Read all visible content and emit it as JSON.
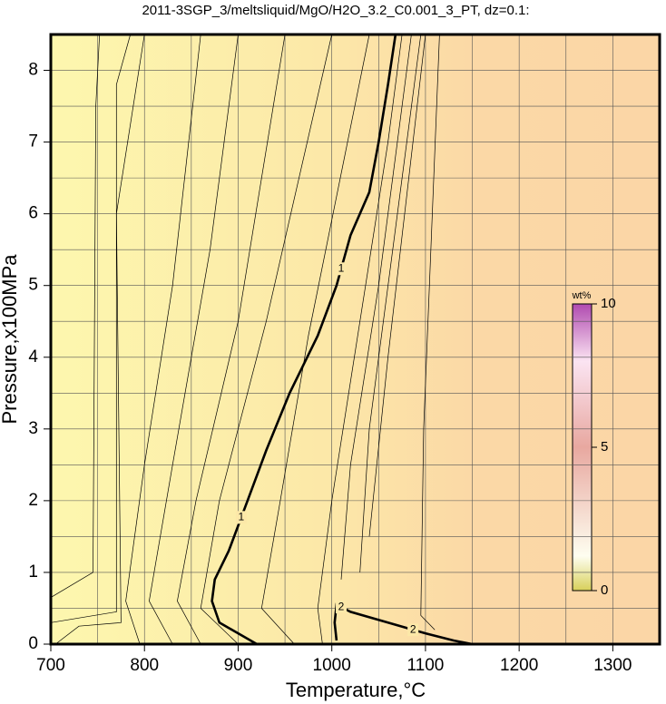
{
  "chart_data": {
    "type": "contour",
    "title": "2011-3SGP_3/meltsliquid/MgO/H2O_3.2_C0.001_3_PT, dz=0.1:",
    "xlabel": "Temperature,°C",
    "ylabel": "Pressure,x100MPa",
    "xlim": [
      700,
      1350
    ],
    "ylim": [
      0,
      8.5
    ],
    "xticks": [
      700,
      800,
      900,
      1000,
      1100,
      1200,
      1300
    ],
    "yticks": [
      0,
      1,
      2,
      3,
      4,
      5,
      6,
      7,
      8
    ],
    "xgrid": [
      750,
      800,
      850,
      900,
      950,
      1000,
      1050,
      1100,
      1150,
      1200,
      1250,
      1300
    ],
    "ygrid": [
      0.5,
      1,
      1.5,
      2,
      2.5,
      3,
      3.5,
      4,
      4.5,
      5,
      5.5,
      6,
      6.5,
      7,
      7.5,
      8
    ],
    "grid": true,
    "colorbar": {
      "label": "wt%",
      "lim": [
        0,
        10
      ],
      "ticks": [
        0,
        5,
        10
      ]
    },
    "contours": [
      {
        "bold": false,
        "x": [
          700,
          745,
          748,
          752
        ],
        "y": [
          0.65,
          1.0,
          7.5,
          8.5
        ]
      },
      {
        "bold": false,
        "x": [
          700,
          770,
          770,
          785
        ],
        "y": [
          0.3,
          0.45,
          7.8,
          8.5
        ]
      },
      {
        "bold": false,
        "x": [
          705,
          730,
          775,
          770,
          800
        ],
        "y": [
          0,
          0.25,
          0.3,
          6,
          8.5
        ]
      },
      {
        "bold": false,
        "x": [
          795,
          780,
          800,
          830,
          860
        ],
        "y": [
          0,
          0.6,
          2.5,
          5,
          8.5
        ]
      },
      {
        "bold": false,
        "x": [
          830,
          805,
          830,
          870,
          900
        ],
        "y": [
          0,
          0.6,
          2.5,
          5.5,
          8.5
        ]
      },
      {
        "bold": false,
        "x": [
          860,
          835,
          855,
          900,
          950
        ],
        "y": [
          0,
          0.6,
          2,
          4.5,
          8.5
        ]
      },
      {
        "bold": false,
        "x": [
          900,
          860,
          880,
          930,
          1000
        ],
        "y": [
          0,
          0.5,
          2,
          4.5,
          8.5
        ]
      },
      {
        "bold": false,
        "x": [
          960,
          925,
          945,
          975,
          1040
        ],
        "y": [
          0,
          0.5,
          2,
          4.3,
          8.5
        ]
      },
      {
        "bold": false,
        "x": [
          990,
          985,
          1000,
          1030,
          1060,
          1075
        ],
        "y": [
          0,
          0.5,
          2,
          4.5,
          7,
          8.5
        ]
      },
      {
        "bold": false,
        "x": [
          1010,
          1020,
          1050,
          1085
        ],
        "y": [
          0.9,
          2.5,
          5,
          8.5
        ]
      },
      {
        "bold": false,
        "x": [
          1030,
          1040,
          1070,
          1095
        ],
        "y": [
          1,
          3,
          6,
          8.5
        ]
      },
      {
        "bold": false,
        "x": [
          1040,
          1060,
          1100
        ],
        "y": [
          1.5,
          4,
          8.5
        ]
      },
      {
        "bold": false,
        "x": [
          1110,
          1095,
          1098,
          1115
        ],
        "y": [
          0.2,
          0.4,
          3,
          8.5
        ]
      },
      {
        "bold": true,
        "labels": [
          "1",
          "1"
        ],
        "x": [
          920,
          880,
          872,
          875,
          890,
          910,
          930,
          955,
          985,
          1005,
          1020,
          1040,
          1050,
          1060,
          1068
        ],
        "y": [
          0,
          0.3,
          0.6,
          0.9,
          1.3,
          2,
          2.7,
          3.5,
          4.3,
          5,
          5.7,
          6.3,
          7,
          7.8,
          8.5
        ]
      },
      {
        "bold": true,
        "labels": [
          "2",
          "2"
        ],
        "x": [
          1005,
          1003,
          1005,
          1020,
          1060,
          1100,
          1130,
          1150
        ],
        "y": [
          0.05,
          0.3,
          0.55,
          0.45,
          0.3,
          0.15,
          0.05,
          0
        ]
      }
    ]
  }
}
